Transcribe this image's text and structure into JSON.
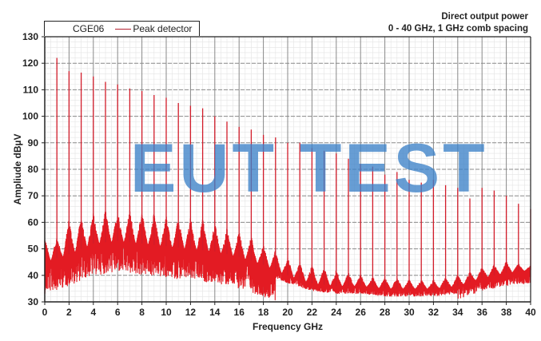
{
  "chart_data": {
    "type": "line",
    "title": "Direct output power",
    "subtitle": "0 - 40 GHz, 1 GHz comb spacing",
    "xlabel": "Frequency GHz",
    "ylabel": "Ampliude dBµV",
    "xlim": [
      0,
      40
    ],
    "ylim": [
      30,
      130
    ],
    "x_ticks": [
      0,
      2,
      4,
      6,
      8,
      10,
      12,
      14,
      16,
      18,
      20,
      22,
      24,
      26,
      28,
      30,
      32,
      34,
      36,
      38,
      40
    ],
    "y_ticks": [
      30,
      40,
      50,
      60,
      70,
      80,
      90,
      100,
      110,
      120,
      130
    ],
    "grid": true,
    "legend": {
      "position": "top-left",
      "device": "CGE06",
      "entries": [
        "Peak detector"
      ]
    },
    "watermark": "EUT TEST",
    "series": [
      {
        "name": "Peak detector",
        "color": "#e31b23",
        "comb_peaks": {
          "frequency_ghz": [
            1,
            2,
            3,
            4,
            5,
            6,
            7,
            8,
            9,
            10,
            11,
            12,
            13,
            14,
            15,
            16,
            17,
            18,
            19,
            20,
            21,
            22,
            23,
            24,
            25,
            26,
            27,
            28,
            29,
            30,
            31,
            32,
            33,
            34,
            35,
            36,
            37,
            38,
            39,
            40
          ],
          "amplitude_dbuv": [
            122,
            117,
            116.5,
            115,
            113,
            112,
            110.5,
            109.5,
            108,
            107,
            105,
            104,
            103,
            100,
            98,
            96,
            95,
            93,
            92,
            90,
            90,
            88,
            87,
            86,
            84,
            82,
            81,
            78,
            79,
            76,
            75,
            76,
            74,
            73,
            69,
            73,
            72,
            70,
            67,
            65
          ]
        },
        "noise_floor": {
          "frequency_ghz": [
            0,
            2,
            4,
            6,
            8,
            10,
            12,
            14,
            16,
            18,
            20,
            22,
            24,
            26,
            28,
            30,
            32,
            34,
            36,
            38,
            40
          ],
          "amplitude_dbuv": [
            45,
            48,
            52,
            53,
            52,
            51,
            50,
            49,
            47,
            44,
            40,
            37,
            36,
            36,
            35,
            35,
            35,
            36,
            39,
            41,
            42
          ]
        },
        "sideband_envelope_peak_dbuv": [
          55,
          62,
          63,
          64,
          65,
          65,
          65,
          65,
          64,
          63,
          62,
          62,
          62,
          60,
          58,
          57,
          55,
          52,
          50,
          48,
          46,
          45,
          44,
          43,
          42,
          41,
          40,
          40,
          40,
          39,
          39,
          39,
          40,
          41,
          42,
          44,
          45,
          46,
          45,
          44
        ]
      }
    ]
  },
  "header": {
    "title_line1": "Direct output power",
    "title_line2": "0 - 40 GHz, 1 GHz comb spacing"
  },
  "legend": {
    "device": "CGE06",
    "entry": "Peak detector"
  },
  "axes": {
    "xlabel": "Frequency GHz",
    "ylabel": "Ampliude dBµV"
  },
  "watermark": "EUT TEST"
}
